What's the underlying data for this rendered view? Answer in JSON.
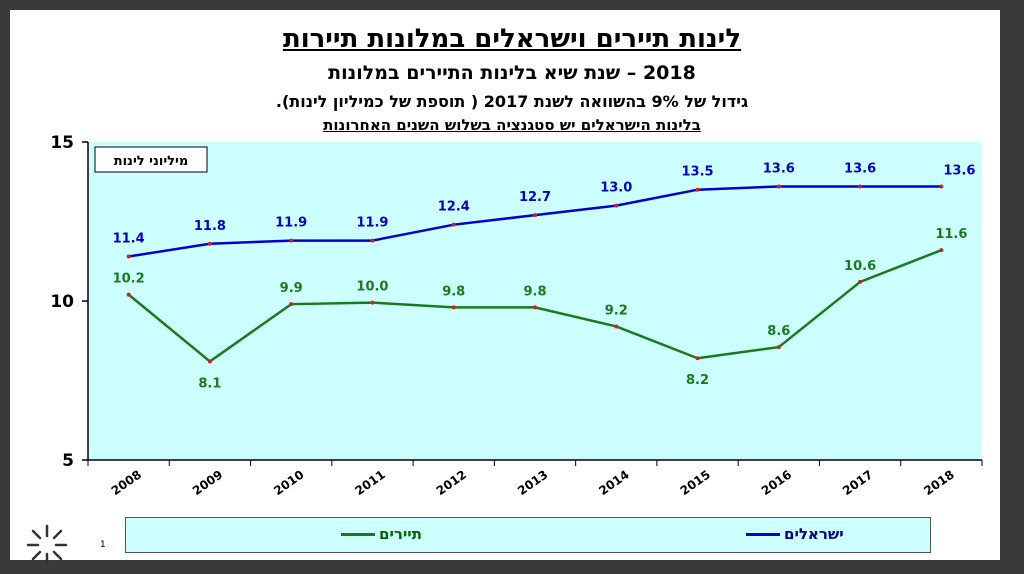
{
  "slide": {
    "title": "לינות תיירים וישראלים במלונות תיירות",
    "subtitle": "2018 – שנת שיא בלינות התיירים במלונות",
    "line3": "גידול של 9% בהשוואה לשנת 2017 ( תוספת של כמיליון לינות).",
    "line4": "בלינות הישראלים יש סטגנציה בשלוש השנים האחרונות",
    "page_number": "1"
  },
  "chart_data": {
    "type": "line",
    "unit_label": "מיליוני לינות",
    "x": [
      "2008",
      "2009",
      "2010",
      "2011",
      "2012",
      "2013",
      "2014",
      "2015",
      "2016",
      "2017",
      "2018"
    ],
    "ylim": [
      5,
      15
    ],
    "yticks": [
      5,
      10,
      15
    ],
    "series": [
      {
        "name": "ישראלים",
        "color": "#0000cc",
        "label_color": "#0000cc",
        "values": [
          11.4,
          11.8,
          11.9,
          11.9,
          12.4,
          12.7,
          13.0,
          13.5,
          13.6,
          13.6,
          13.6
        ],
        "labels": [
          "11.4",
          "11.8",
          "11.9",
          "11.9",
          "12.4",
          "12.7",
          "13.0",
          "13.5",
          "13.6",
          "13.6",
          "13.6"
        ]
      },
      {
        "name": "תיירים",
        "color": "#1a7a1a",
        "label_color": "#1a7a1a",
        "values": [
          10.2,
          8.1,
          9.9,
          9.95,
          9.8,
          9.8,
          9.2,
          8.2,
          8.55,
          10.6,
          11.6
        ],
        "labels": [
          "10.2",
          "8.1",
          "9.9",
          "10.0",
          "9.8",
          "9.8",
          "9.2",
          "8.2",
          "8.6",
          "10.6",
          "11.6"
        ]
      }
    ],
    "plot_background": "#ccffff",
    "legend_position": "bottom"
  }
}
